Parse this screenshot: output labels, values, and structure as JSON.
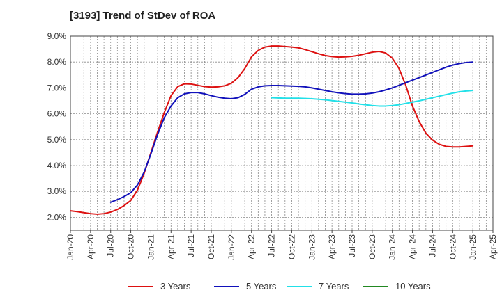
{
  "title": "[3193]  Trend of StDev of ROA",
  "chart_data": {
    "type": "line",
    "title": "[3193]  Trend of StDev of ROA",
    "xlabel": "",
    "ylabel": "",
    "ylim": [
      1.5,
      9.0
    ],
    "yticks": [
      2.0,
      3.0,
      4.0,
      5.0,
      6.0,
      7.0,
      8.0,
      9.0
    ],
    "ytick_labels": [
      "2.0%",
      "3.0%",
      "4.0%",
      "5.0%",
      "6.0%",
      "7.0%",
      "8.0%",
      "9.0%"
    ],
    "x_tick_labels": [
      "Jan-20",
      "Apr-20",
      "Jul-20",
      "Oct-20",
      "Jan-21",
      "Apr-21",
      "Jul-21",
      "Oct-21",
      "Jan-22",
      "Apr-22",
      "Jul-22",
      "Oct-22",
      "Jan-23",
      "Apr-23",
      "Jul-23",
      "Oct-23",
      "Jan-24",
      "Apr-24",
      "Jul-24",
      "Oct-24",
      "Jan-25",
      "Apr-25"
    ],
    "grid": true,
    "legend_position": "bottom",
    "series": [
      {
        "name": "3 Years",
        "color": "#dd1111",
        "points": [
          [
            "2020-01",
            2.25
          ],
          [
            "2020-02",
            2.22
          ],
          [
            "2020-03",
            2.18
          ],
          [
            "2020-04",
            2.14
          ],
          [
            "2020-05",
            2.12
          ],
          [
            "2020-06",
            2.14
          ],
          [
            "2020-07",
            2.2
          ],
          [
            "2020-08",
            2.3
          ],
          [
            "2020-09",
            2.45
          ],
          [
            "2020-10",
            2.65
          ],
          [
            "2020-11",
            3.05
          ],
          [
            "2020-12",
            3.7
          ],
          [
            "2021-01",
            4.5
          ],
          [
            "2021-02",
            5.3
          ],
          [
            "2021-03",
            6.05
          ],
          [
            "2021-04",
            6.7
          ],
          [
            "2021-05",
            7.05
          ],
          [
            "2021-06",
            7.16
          ],
          [
            "2021-07",
            7.15
          ],
          [
            "2021-08",
            7.1
          ],
          [
            "2021-09",
            7.05
          ],
          [
            "2021-10",
            7.03
          ],
          [
            "2021-11",
            7.04
          ],
          [
            "2021-12",
            7.08
          ],
          [
            "2022-01",
            7.18
          ],
          [
            "2022-02",
            7.4
          ],
          [
            "2022-03",
            7.75
          ],
          [
            "2022-04",
            8.2
          ],
          [
            "2022-05",
            8.45
          ],
          [
            "2022-06",
            8.58
          ],
          [
            "2022-07",
            8.62
          ],
          [
            "2022-08",
            8.62
          ],
          [
            "2022-09",
            8.6
          ],
          [
            "2022-10",
            8.58
          ],
          [
            "2022-11",
            8.55
          ],
          [
            "2022-12",
            8.48
          ],
          [
            "2023-01",
            8.4
          ],
          [
            "2023-02",
            8.32
          ],
          [
            "2023-03",
            8.25
          ],
          [
            "2023-04",
            8.21
          ],
          [
            "2023-05",
            8.19
          ],
          [
            "2023-06",
            8.2
          ],
          [
            "2023-07",
            8.22
          ],
          [
            "2023-08",
            8.26
          ],
          [
            "2023-09",
            8.32
          ],
          [
            "2023-10",
            8.38
          ],
          [
            "2023-11",
            8.41
          ],
          [
            "2023-12",
            8.35
          ],
          [
            "2024-01",
            8.15
          ],
          [
            "2024-02",
            7.75
          ],
          [
            "2024-03",
            7.1
          ],
          [
            "2024-04",
            6.3
          ],
          [
            "2024-05",
            5.7
          ],
          [
            "2024-06",
            5.25
          ],
          [
            "2024-07",
            4.98
          ],
          [
            "2024-08",
            4.82
          ],
          [
            "2024-09",
            4.74
          ],
          [
            "2024-10",
            4.72
          ],
          [
            "2024-11",
            4.72
          ],
          [
            "2024-12",
            4.74
          ],
          [
            "2025-01",
            4.76
          ]
        ]
      },
      {
        "name": "5 Years",
        "color": "#1111bb",
        "points": [
          [
            "2020-07",
            2.58
          ],
          [
            "2020-08",
            2.68
          ],
          [
            "2020-09",
            2.8
          ],
          [
            "2020-10",
            2.95
          ],
          [
            "2020-11",
            3.25
          ],
          [
            "2020-12",
            3.75
          ],
          [
            "2021-01",
            4.45
          ],
          [
            "2021-02",
            5.2
          ],
          [
            "2021-03",
            5.85
          ],
          [
            "2021-04",
            6.3
          ],
          [
            "2021-05",
            6.62
          ],
          [
            "2021-06",
            6.77
          ],
          [
            "2021-07",
            6.82
          ],
          [
            "2021-08",
            6.82
          ],
          [
            "2021-09",
            6.77
          ],
          [
            "2021-10",
            6.7
          ],
          [
            "2021-11",
            6.64
          ],
          [
            "2021-12",
            6.6
          ],
          [
            "2022-01",
            6.58
          ],
          [
            "2022-02",
            6.62
          ],
          [
            "2022-03",
            6.75
          ],
          [
            "2022-04",
            6.95
          ],
          [
            "2022-05",
            7.04
          ],
          [
            "2022-06",
            7.08
          ],
          [
            "2022-07",
            7.09
          ],
          [
            "2022-08",
            7.09
          ],
          [
            "2022-09",
            7.08
          ],
          [
            "2022-10",
            7.07
          ],
          [
            "2022-11",
            7.06
          ],
          [
            "2022-12",
            7.04
          ],
          [
            "2023-01",
            7.0
          ],
          [
            "2023-02",
            6.95
          ],
          [
            "2023-03",
            6.9
          ],
          [
            "2023-04",
            6.85
          ],
          [
            "2023-05",
            6.81
          ],
          [
            "2023-06",
            6.78
          ],
          [
            "2023-07",
            6.76
          ],
          [
            "2023-08",
            6.76
          ],
          [
            "2023-09",
            6.77
          ],
          [
            "2023-10",
            6.8
          ],
          [
            "2023-11",
            6.85
          ],
          [
            "2023-12",
            6.92
          ],
          [
            "2024-01",
            7.0
          ],
          [
            "2024-02",
            7.1
          ],
          [
            "2024-03",
            7.2
          ],
          [
            "2024-04",
            7.3
          ],
          [
            "2024-05",
            7.4
          ],
          [
            "2024-06",
            7.5
          ],
          [
            "2024-07",
            7.6
          ],
          [
            "2024-08",
            7.7
          ],
          [
            "2024-09",
            7.8
          ],
          [
            "2024-10",
            7.88
          ],
          [
            "2024-11",
            7.94
          ],
          [
            "2024-12",
            7.98
          ],
          [
            "2025-01",
            8.0
          ]
        ]
      },
      {
        "name": "7 Years",
        "color": "#22e0e8",
        "points": [
          [
            "2022-07",
            6.62
          ],
          [
            "2022-08",
            6.61
          ],
          [
            "2022-09",
            6.6
          ],
          [
            "2022-10",
            6.6
          ],
          [
            "2022-11",
            6.6
          ],
          [
            "2022-12",
            6.59
          ],
          [
            "2023-01",
            6.58
          ],
          [
            "2023-02",
            6.56
          ],
          [
            "2023-03",
            6.54
          ],
          [
            "2023-04",
            6.51
          ],
          [
            "2023-05",
            6.48
          ],
          [
            "2023-06",
            6.45
          ],
          [
            "2023-07",
            6.42
          ],
          [
            "2023-08",
            6.38
          ],
          [
            "2023-09",
            6.35
          ],
          [
            "2023-10",
            6.32
          ],
          [
            "2023-11",
            6.3
          ],
          [
            "2023-12",
            6.3
          ],
          [
            "2024-01",
            6.32
          ],
          [
            "2024-02",
            6.35
          ],
          [
            "2024-03",
            6.4
          ],
          [
            "2024-04",
            6.45
          ],
          [
            "2024-05",
            6.5
          ],
          [
            "2024-06",
            6.56
          ],
          [
            "2024-07",
            6.62
          ],
          [
            "2024-08",
            6.68
          ],
          [
            "2024-09",
            6.74
          ],
          [
            "2024-10",
            6.8
          ],
          [
            "2024-11",
            6.85
          ],
          [
            "2024-12",
            6.88
          ],
          [
            "2025-01",
            6.9
          ]
        ]
      },
      {
        "name": "10 Years",
        "color": "#228822",
        "points": []
      }
    ]
  }
}
